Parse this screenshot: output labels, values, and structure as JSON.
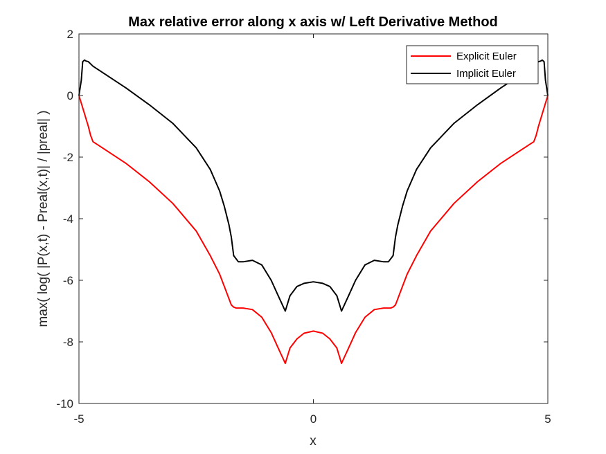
{
  "chart_data": {
    "type": "line",
    "title": "Max relative error along x axis w/ Left Derivative Method",
    "xlabel": "x",
    "ylabel": "max( log( |P(x,t) - Preal(x,t)| / |preal| )",
    "xlim": [
      -5,
      5
    ],
    "ylim": [
      -10,
      2
    ],
    "xticks": [
      "-5",
      "0",
      "5"
    ],
    "yticks": [
      "2",
      "0",
      "-2",
      "-4",
      "-6",
      "-8",
      "-10"
    ],
    "grid": false,
    "legend_position": "top-right",
    "series": [
      {
        "name": "Explicit Euler",
        "color": "#ff0000",
        "x": [
          -5,
          -4.9,
          -4.8,
          -4.75,
          -4.7,
          -4.6,
          -4.4,
          -4.0,
          -3.5,
          -3.0,
          -2.5,
          -2.2,
          -2.0,
          -1.9,
          -1.8,
          -1.75,
          -1.7,
          -1.65,
          -1.5,
          -1.3,
          -1.1,
          -0.9,
          -0.75,
          -0.6,
          -0.5,
          -0.35,
          -0.2,
          0,
          0.2,
          0.35,
          0.5,
          0.6,
          0.75,
          0.9,
          1.1,
          1.3,
          1.5,
          1.65,
          1.7,
          1.75,
          1.8,
          1.9,
          2.0,
          2.2,
          2.5,
          3.0,
          3.5,
          4.0,
          4.4,
          4.6,
          4.7,
          4.75,
          4.8,
          4.9,
          5
        ],
        "y": [
          0,
          -0.5,
          -1.0,
          -1.3,
          -1.5,
          -1.6,
          -1.8,
          -2.2,
          -2.8,
          -3.5,
          -4.4,
          -5.2,
          -5.8,
          -6.2,
          -6.6,
          -6.8,
          -6.87,
          -6.9,
          -6.9,
          -6.95,
          -7.2,
          -7.7,
          -8.2,
          -8.7,
          -8.2,
          -7.9,
          -7.72,
          -7.65,
          -7.72,
          -7.9,
          -8.2,
          -8.7,
          -8.2,
          -7.7,
          -7.2,
          -6.95,
          -6.9,
          -6.9,
          -6.87,
          -6.8,
          -6.6,
          -6.2,
          -5.8,
          -5.2,
          -4.4,
          -3.5,
          -2.8,
          -2.2,
          -1.8,
          -1.6,
          -1.5,
          -1.3,
          -1.0,
          -0.5,
          0
        ]
      },
      {
        "name": "Implicit Euler",
        "color": "#000000",
        "x": [
          -5,
          -4.95,
          -4.92,
          -4.88,
          -4.85,
          -4.8,
          -4.7,
          -4.5,
          -4.0,
          -3.5,
          -3.0,
          -2.5,
          -2.2,
          -2.0,
          -1.9,
          -1.8,
          -1.75,
          -1.7,
          -1.6,
          -1.5,
          -1.3,
          -1.1,
          -0.9,
          -0.75,
          -0.6,
          -0.5,
          -0.35,
          -0.2,
          0,
          0.2,
          0.35,
          0.5,
          0.6,
          0.75,
          0.9,
          1.1,
          1.3,
          1.5,
          1.6,
          1.7,
          1.75,
          1.8,
          1.9,
          2.0,
          2.2,
          2.5,
          3.0,
          3.5,
          4.0,
          4.5,
          4.7,
          4.8,
          4.85,
          4.88,
          4.92,
          4.95,
          5
        ],
        "y": [
          0,
          0.5,
          1.1,
          1.15,
          1.12,
          1.1,
          0.95,
          0.75,
          0.25,
          -0.3,
          -0.9,
          -1.7,
          -2.4,
          -3.1,
          -3.6,
          -4.2,
          -4.6,
          -5.2,
          -5.4,
          -5.4,
          -5.35,
          -5.5,
          -6.0,
          -6.5,
          -7.0,
          -6.5,
          -6.2,
          -6.1,
          -6.05,
          -6.1,
          -6.2,
          -6.5,
          -7.0,
          -6.5,
          -6.0,
          -5.5,
          -5.35,
          -5.4,
          -5.4,
          -5.2,
          -4.6,
          -4.2,
          -3.6,
          -3.1,
          -2.4,
          -1.7,
          -0.9,
          -0.3,
          0.25,
          0.75,
          0.95,
          1.1,
          1.12,
          1.15,
          1.1,
          0.5,
          0
        ]
      }
    ]
  }
}
